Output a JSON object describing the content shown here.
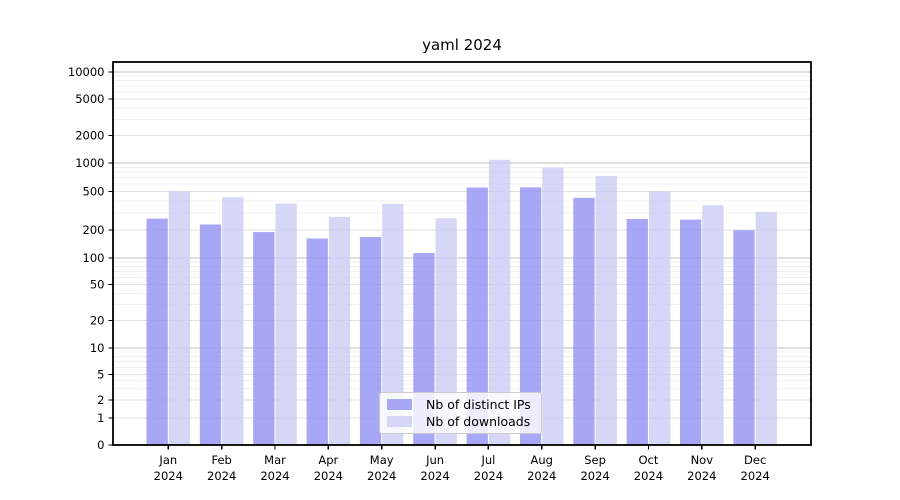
{
  "chart_data": {
    "type": "bar",
    "title": "yaml 2024",
    "categories": [
      "Jan 2024",
      "Feb 2024",
      "Mar 2024",
      "Apr 2024",
      "May 2024",
      "Jun 2024",
      "Jul 2024",
      "Aug 2024",
      "Sep 2024",
      "Oct 2024",
      "Nov 2024",
      "Dec 2024"
    ],
    "series": [
      {
        "name": "Nb of distinct IPs",
        "legend_color": "#a7a7f5",
        "bar_color": "#8e8ef2",
        "values": [
          262,
          228,
          190,
          162,
          168,
          113,
          551,
          553,
          430,
          260,
          256,
          199
        ]
      },
      {
        "name": "Nb of downloads",
        "legend_color": "#d6d6f7",
        "bar_color": "#cbcbf5",
        "values": [
          505,
          437,
          375,
          273,
          372,
          265,
          1085,
          895,
          730,
          502,
          360,
          308
        ]
      }
    ],
    "xlabel": "",
    "ylabel": "",
    "yscale": "symlog",
    "ylim": [
      0,
      14000
    ],
    "yticks": [
      0,
      1,
      2,
      5,
      10,
      20,
      50,
      100,
      200,
      500,
      1000,
      2000,
      5000,
      10000
    ],
    "grid": true,
    "legend_position": "lower center",
    "colors": {
      "axis": "#000000",
      "grid_major": "#bfbfbf",
      "grid_labeled": "#e2e2e2",
      "grid_minor": "#f0f0f0",
      "text": "#000000"
    }
  }
}
